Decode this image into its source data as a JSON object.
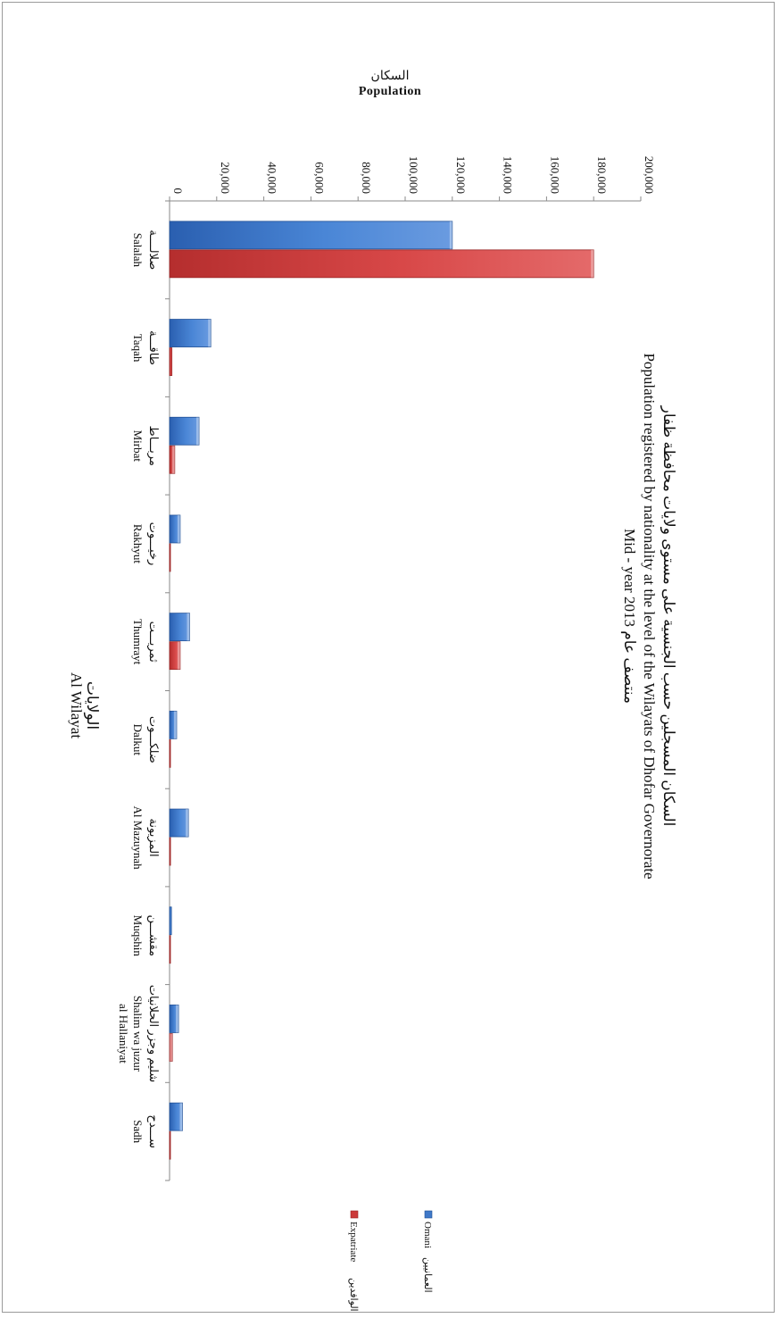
{
  "chart_data": {
    "type": "bar",
    "title_ar": "السكان المسجلين حسب الجنسية على مستوى ولايات محافظة ظفار",
    "title_en": "Population registered by nationality at the level of the Wilayats of Dhofar Governorate",
    "subtitle": "Mid - year  2013 منتصف عام",
    "ylabel_ar": "السكان",
    "ylabel_en": "Population",
    "xlabel_ar": "الولايات",
    "xlabel_en": "Al Wilayat",
    "ylim": [
      0,
      200000
    ],
    "yticks": [
      "0",
      "20,000",
      "40,000",
      "60,000",
      "80,000",
      "100,000",
      "120,000",
      "140,000",
      "160,000",
      "180,000",
      "200,000"
    ],
    "categories": [
      {
        "ar": "صلالــــة",
        "en": "Salalah",
        "en2": ""
      },
      {
        "ar": "طاقـــة",
        "en": "Taqah",
        "en2": ""
      },
      {
        "ar": "مربـــاط",
        "en": "Mirbat",
        "en2": ""
      },
      {
        "ar": "رخيـــوت",
        "en": "Rakhyut",
        "en2": ""
      },
      {
        "ar": "ثمريـــت",
        "en": "Thumrayt",
        "en2": ""
      },
      {
        "ar": "ضلكـــوت",
        "en": "Dalkut",
        "en2": ""
      },
      {
        "ar": "المزيونة",
        "en": "Al Mazuynah",
        "en2": ""
      },
      {
        "ar": "مقشـــن",
        "en": "Muqshin",
        "en2": ""
      },
      {
        "ar": "شليم وجزر الحلانيات",
        "en": "Shalim wa juzur",
        "en2": "al Hallaniyat"
      },
      {
        "ar": "ســـدح",
        "en": "Sadh",
        "en2": ""
      }
    ],
    "series": [
      {
        "name": "Omani",
        "name_ar": "العمانيين",
        "color": "#3f78c8",
        "values": [
          120000,
          17500,
          12500,
          4500,
          8500,
          3000,
          8000,
          800,
          3800,
          5500
        ]
      },
      {
        "name": "Expatriate",
        "name_ar": "الوافدين",
        "color": "#cc3a3a",
        "values": [
          180000,
          1000,
          2200,
          150,
          4500,
          150,
          400,
          100,
          1200,
          200
        ]
      }
    ],
    "grid": false,
    "legend": "bottom-right"
  }
}
